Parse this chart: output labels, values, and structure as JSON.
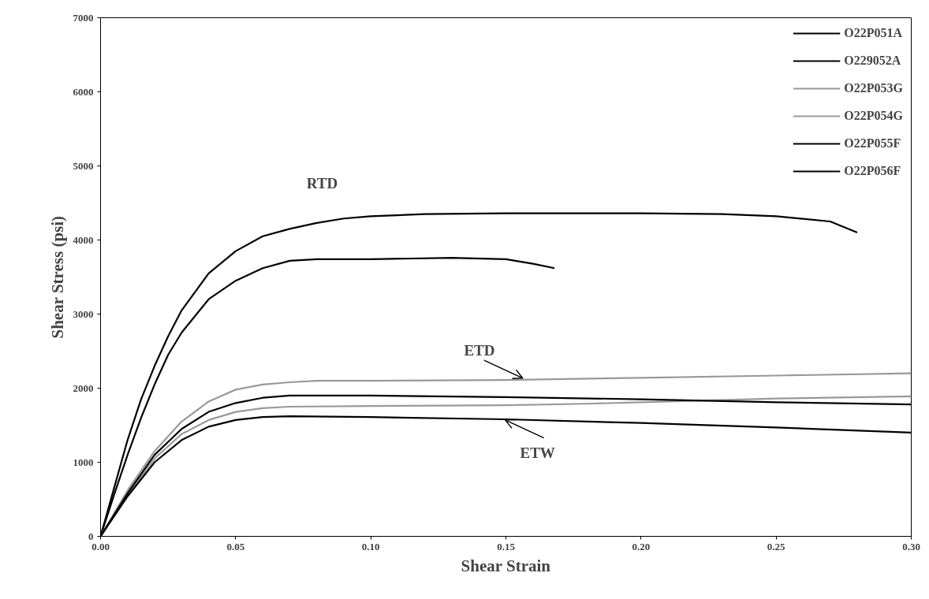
{
  "chart_data": {
    "type": "line",
    "xlabel": "Shear Strain",
    "ylabel": "Shear Stress (psi)",
    "xlim": [
      0,
      0.3
    ],
    "ylim": [
      0,
      7000
    ],
    "xticks": [
      {
        "value": 0,
        "label": "0.00"
      },
      {
        "value": 0.05,
        "label": "0.05"
      },
      {
        "value": 0.1,
        "label": "0.10"
      },
      {
        "value": 0.15,
        "label": "0.15"
      },
      {
        "value": 0.2,
        "label": "0.20"
      },
      {
        "value": 0.25,
        "label": "0.25"
      },
      {
        "value": 0.3,
        "label": "0.30"
      }
    ],
    "yticks": [
      0,
      1000,
      2000,
      3000,
      4000,
      5000,
      6000,
      7000
    ],
    "legend": "top right",
    "marker": "none",
    "line_style": "solid",
    "series": [
      {
        "name": "O22P051A",
        "color": "#000000",
        "x": [
          0,
          0.005,
          0.01,
          0.015,
          0.02,
          0.025,
          0.03,
          0.04,
          0.05,
          0.06,
          0.07,
          0.08,
          0.09,
          0.1,
          0.12,
          0.15,
          0.2,
          0.23,
          0.25,
          0.27,
          0.28
        ],
        "values": [
          0,
          650,
          1300,
          1850,
          2300,
          2700,
          3050,
          3550,
          3850,
          4050,
          4150,
          4230,
          4290,
          4320,
          4350,
          4360,
          4360,
          4350,
          4320,
          4250,
          4100
        ]
      },
      {
        "name": "O229052A",
        "color": "#000000",
        "x": [
          0,
          0.005,
          0.01,
          0.015,
          0.02,
          0.025,
          0.03,
          0.04,
          0.05,
          0.06,
          0.07,
          0.08,
          0.1,
          0.13,
          0.15,
          0.16,
          0.168
        ],
        "values": [
          0,
          560,
          1100,
          1600,
          2050,
          2450,
          2750,
          3200,
          3450,
          3620,
          3720,
          3740,
          3740,
          3760,
          3740,
          3680,
          3620
        ]
      },
      {
        "name": "O22P053G",
        "color": "#999999",
        "x": [
          0,
          0.01,
          0.02,
          0.03,
          0.04,
          0.05,
          0.06,
          0.07,
          0.08,
          0.1,
          0.15,
          0.2,
          0.25,
          0.3
        ],
        "values": [
          0,
          620,
          1150,
          1550,
          1820,
          1980,
          2050,
          2080,
          2100,
          2100,
          2110,
          2140,
          2170,
          2200
        ]
      },
      {
        "name": "O22P054G",
        "color": "#999999",
        "x": [
          0,
          0.01,
          0.02,
          0.03,
          0.04,
          0.05,
          0.06,
          0.07,
          0.1,
          0.15,
          0.18,
          0.2,
          0.25,
          0.3
        ],
        "values": [
          0,
          560,
          1050,
          1380,
          1570,
          1680,
          1730,
          1750,
          1760,
          1770,
          1790,
          1810,
          1860,
          1890
        ]
      },
      {
        "name": "O22P055F",
        "color": "#000000",
        "x": [
          0,
          0.01,
          0.02,
          0.03,
          0.04,
          0.05,
          0.06,
          0.07,
          0.1,
          0.15,
          0.2,
          0.25,
          0.3
        ],
        "values": [
          0,
          580,
          1100,
          1450,
          1680,
          1800,
          1870,
          1900,
          1900,
          1880,
          1850,
          1810,
          1780
        ]
      },
      {
        "name": "O22P056F",
        "color": "#000000",
        "x": [
          0,
          0.01,
          0.02,
          0.03,
          0.04,
          0.05,
          0.06,
          0.07,
          0.1,
          0.15,
          0.2,
          0.25,
          0.3
        ],
        "values": [
          0,
          540,
          1000,
          1300,
          1480,
          1570,
          1610,
          1620,
          1610,
          1580,
          1530,
          1470,
          1400
        ]
      }
    ],
    "annotations": [
      {
        "text": "RTD",
        "x": 0.082,
        "y": 4230
      },
      {
        "text": "ETD",
        "x": 0.158,
        "y": 2110
      },
      {
        "text": "ETW",
        "x": 0.148,
        "y": 1595
      }
    ]
  }
}
